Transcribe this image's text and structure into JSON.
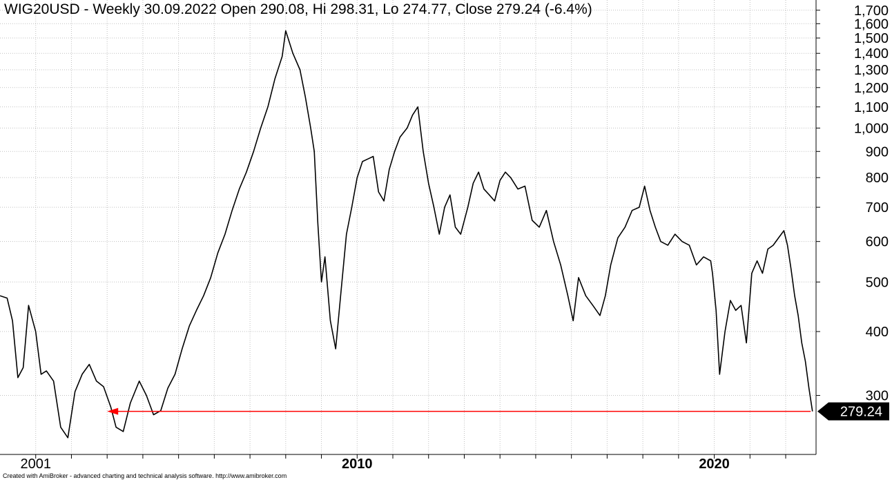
{
  "header": {
    "title": "WIG20USD - Weekly 30.09.2022 Open 290.08, Hi 298.31, Lo 274.77, Close 279.24 (-6.4%)"
  },
  "footer": {
    "credit": "Created with AmiBroker - advanced charting and technical analysis software. http://www.amibroker.com"
  },
  "colors": {
    "price_line": "#000000",
    "arrow": "#ff0000",
    "grid": "#bfbfbf",
    "axis": "#000000",
    "last_price_label_bg": "#000000",
    "last_price_label_text": "#ffffff"
  },
  "chart_data": {
    "type": "line",
    "scale": "log",
    "grid": true,
    "yticks": [
      300,
      400,
      500,
      600,
      700,
      800,
      900,
      1000,
      1100,
      1200,
      1300,
      1400,
      1500,
      1600,
      1700
    ],
    "ytick_labels": [
      "300",
      "400",
      "500",
      "600",
      "700",
      "800",
      "900",
      "1,000",
      "1,100",
      "1,200",
      "1,300",
      "1,400",
      "1,500",
      "1,600",
      "1,700"
    ],
    "xtick_labels": [
      {
        "x": 2001,
        "label": "2001"
      },
      {
        "x": 2010,
        "label": "2010"
      },
      {
        "x": 2020,
        "label": "2020"
      }
    ],
    "xlim": [
      2000.0,
      2022.85
    ],
    "ylim": [
      230,
      1780
    ],
    "last_value": 279.24,
    "last_value_label": "279.24",
    "arrow": {
      "from": [
        2022.7,
        279.24
      ],
      "to": [
        2003.0,
        279.24
      ]
    },
    "series": [
      {
        "points": [
          [
            2000.0,
            470
          ],
          [
            2000.2,
            465
          ],
          [
            2000.35,
            420
          ],
          [
            2000.5,
            325
          ],
          [
            2000.65,
            340
          ],
          [
            2000.8,
            450
          ],
          [
            2001.0,
            400
          ],
          [
            2001.15,
            330
          ],
          [
            2001.3,
            335
          ],
          [
            2001.5,
            320
          ],
          [
            2001.7,
            260
          ],
          [
            2001.9,
            248
          ],
          [
            2002.1,
            305
          ],
          [
            2002.3,
            330
          ],
          [
            2002.5,
            345
          ],
          [
            2002.7,
            320
          ],
          [
            2002.9,
            312
          ],
          [
            2003.1,
            285
          ],
          [
            2003.25,
            260
          ],
          [
            2003.45,
            255
          ],
          [
            2003.65,
            290
          ],
          [
            2003.9,
            320
          ],
          [
            2004.1,
            300
          ],
          [
            2004.3,
            275
          ],
          [
            2004.5,
            280
          ],
          [
            2004.7,
            310
          ],
          [
            2004.9,
            330
          ],
          [
            2005.1,
            370
          ],
          [
            2005.3,
            410
          ],
          [
            2005.5,
            440
          ],
          [
            2005.7,
            470
          ],
          [
            2005.9,
            510
          ],
          [
            2006.1,
            570
          ],
          [
            2006.3,
            620
          ],
          [
            2006.5,
            690
          ],
          [
            2006.7,
            760
          ],
          [
            2006.9,
            820
          ],
          [
            2007.1,
            900
          ],
          [
            2007.3,
            1000
          ],
          [
            2007.5,
            1100
          ],
          [
            2007.7,
            1250
          ],
          [
            2007.9,
            1380
          ],
          [
            2008.0,
            1550
          ],
          [
            2008.2,
            1400
          ],
          [
            2008.4,
            1300
          ],
          [
            2008.55,
            1150
          ],
          [
            2008.7,
            1000
          ],
          [
            2008.8,
            900
          ],
          [
            2008.9,
            650
          ],
          [
            2009.0,
            500
          ],
          [
            2009.1,
            560
          ],
          [
            2009.25,
            420
          ],
          [
            2009.4,
            370
          ],
          [
            2009.55,
            480
          ],
          [
            2009.7,
            620
          ],
          [
            2009.85,
            700
          ],
          [
            2010.0,
            800
          ],
          [
            2010.15,
            860
          ],
          [
            2010.3,
            870
          ],
          [
            2010.45,
            880
          ],
          [
            2010.6,
            750
          ],
          [
            2010.75,
            720
          ],
          [
            2010.9,
            830
          ],
          [
            2011.05,
            900
          ],
          [
            2011.2,
            960
          ],
          [
            2011.4,
            1000
          ],
          [
            2011.55,
            1060
          ],
          [
            2011.7,
            1100
          ],
          [
            2011.85,
            900
          ],
          [
            2012.0,
            780
          ],
          [
            2012.15,
            700
          ],
          [
            2012.3,
            620
          ],
          [
            2012.45,
            700
          ],
          [
            2012.6,
            740
          ],
          [
            2012.75,
            640
          ],
          [
            2012.9,
            620
          ],
          [
            2013.1,
            700
          ],
          [
            2013.25,
            780
          ],
          [
            2013.4,
            820
          ],
          [
            2013.55,
            760
          ],
          [
            2013.7,
            740
          ],
          [
            2013.85,
            720
          ],
          [
            2014.0,
            790
          ],
          [
            2014.15,
            820
          ],
          [
            2014.3,
            800
          ],
          [
            2014.5,
            760
          ],
          [
            2014.7,
            770
          ],
          [
            2014.9,
            660
          ],
          [
            2015.1,
            640
          ],
          [
            2015.3,
            690
          ],
          [
            2015.5,
            600
          ],
          [
            2015.7,
            540
          ],
          [
            2015.9,
            470
          ],
          [
            2016.05,
            420
          ],
          [
            2016.2,
            510
          ],
          [
            2016.4,
            470
          ],
          [
            2016.6,
            450
          ],
          [
            2016.8,
            430
          ],
          [
            2016.95,
            470
          ],
          [
            2017.1,
            540
          ],
          [
            2017.3,
            610
          ],
          [
            2017.5,
            640
          ],
          [
            2017.7,
            690
          ],
          [
            2017.9,
            700
          ],
          [
            2018.05,
            770
          ],
          [
            2018.2,
            690
          ],
          [
            2018.35,
            640
          ],
          [
            2018.5,
            600
          ],
          [
            2018.7,
            590
          ],
          [
            2018.9,
            620
          ],
          [
            2019.1,
            600
          ],
          [
            2019.3,
            590
          ],
          [
            2019.5,
            540
          ],
          [
            2019.7,
            560
          ],
          [
            2019.9,
            550
          ],
          [
            2019.95,
            520
          ],
          [
            2020.05,
            440
          ],
          [
            2020.15,
            330
          ],
          [
            2020.3,
            400
          ],
          [
            2020.45,
            460
          ],
          [
            2020.6,
            440
          ],
          [
            2020.75,
            450
          ],
          [
            2020.9,
            380
          ],
          [
            2021.05,
            520
          ],
          [
            2021.2,
            550
          ],
          [
            2021.35,
            520
          ],
          [
            2021.5,
            580
          ],
          [
            2021.65,
            590
          ],
          [
            2021.8,
            610
          ],
          [
            2021.95,
            630
          ],
          [
            2022.05,
            590
          ],
          [
            2022.15,
            530
          ],
          [
            2022.25,
            470
          ],
          [
            2022.35,
            430
          ],
          [
            2022.45,
            380
          ],
          [
            2022.55,
            350
          ],
          [
            2022.65,
            310
          ],
          [
            2022.75,
            279.24
          ]
        ]
      }
    ]
  }
}
